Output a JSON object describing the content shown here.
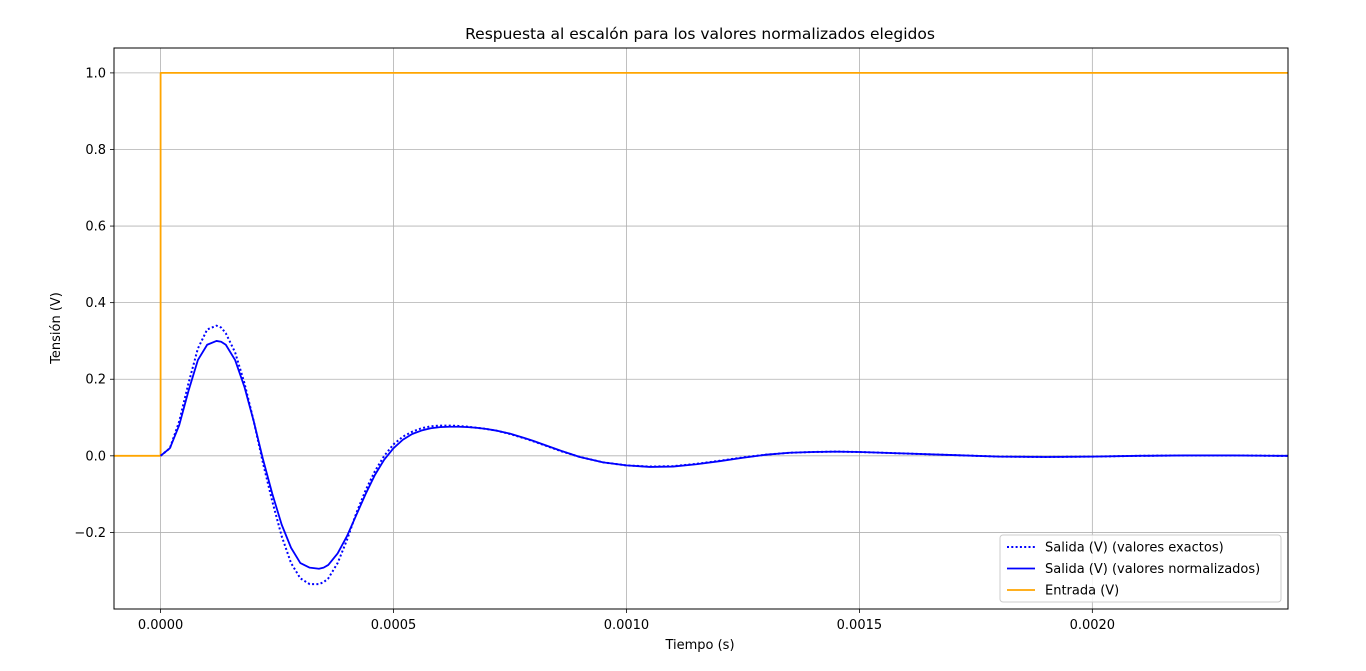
{
  "chart_data": {
    "type": "line",
    "title": "Respuesta al escalón para los valores normalizados elegidos",
    "xlabel": "Tiempo (s)",
    "ylabel": "Tensión (V)",
    "xlim": [
      -0.0001,
      0.00242
    ],
    "ylim": [
      -0.4,
      1.065
    ],
    "x_ticks": [
      0.0,
      0.0005,
      0.001,
      0.0015,
      0.002
    ],
    "x_tick_labels": [
      "0.0000",
      "0.0005",
      "0.0010",
      "0.0015",
      "0.0020"
    ],
    "y_ticks": [
      -0.2,
      0.0,
      0.2,
      0.4,
      0.6,
      0.8,
      1.0
    ],
    "y_tick_labels": [
      "−0.2",
      "0.0",
      "0.2",
      "0.4",
      "0.6",
      "0.8",
      "1.0"
    ],
    "grid": true,
    "legend_position": "lower-right",
    "series": [
      {
        "name": "Salida (V) (valores exactos)",
        "color": "#0000ff",
        "style": "dotted",
        "x": [
          0,
          2e-05,
          4e-05,
          6e-05,
          8e-05,
          0.0001,
          0.00012,
          0.00013,
          0.00014,
          0.00016,
          0.00018,
          0.0002,
          0.00022,
          0.00024,
          0.00026,
          0.00028,
          0.0003,
          0.00032,
          0.00034,
          0.00035,
          0.00036,
          0.00038,
          0.0004,
          0.00042,
          0.00044,
          0.00046,
          0.00048,
          0.0005,
          0.00052,
          0.00054,
          0.00056,
          0.00058,
          0.0006,
          0.00062,
          0.00064,
          0.00066,
          0.00068,
          0.0007,
          0.00072,
          0.00075,
          0.00078,
          0.0008,
          0.00083,
          0.00086,
          0.0009,
          0.00095,
          0.001,
          0.00105,
          0.0011,
          0.00115,
          0.0012,
          0.00125,
          0.0013,
          0.00135,
          0.0014,
          0.00145,
          0.0015,
          0.00155,
          0.0016,
          0.0017,
          0.0018,
          0.0019,
          0.002,
          0.0021,
          0.0022,
          0.0023,
          0.0024,
          0.00242
        ],
        "y": [
          0.0,
          0.02,
          0.09,
          0.19,
          0.28,
          0.33,
          0.34,
          0.335,
          0.32,
          0.27,
          0.19,
          0.09,
          -0.02,
          -0.12,
          -0.21,
          -0.28,
          -0.32,
          -0.335,
          -0.335,
          -0.33,
          -0.32,
          -0.28,
          -0.22,
          -0.15,
          -0.09,
          -0.04,
          0.0,
          0.03,
          0.05,
          0.063,
          0.072,
          0.077,
          0.079,
          0.079,
          0.078,
          0.076,
          0.073,
          0.07,
          0.066,
          0.057,
          0.046,
          0.038,
          0.025,
          0.012,
          -0.003,
          -0.017,
          -0.025,
          -0.028,
          -0.027,
          -0.021,
          -0.013,
          -0.004,
          0.003,
          0.008,
          0.01,
          0.011,
          0.01,
          0.008,
          0.006,
          0.002,
          -0.002,
          -0.003,
          -0.002,
          0.0,
          0.001,
          0.001,
          0.0,
          0.0
        ]
      },
      {
        "name": "Salida (V) (valores normalizados)",
        "color": "#0000ff",
        "style": "solid",
        "x": [
          0,
          2e-05,
          4e-05,
          6e-05,
          8e-05,
          0.0001,
          0.00012,
          0.00013,
          0.00014,
          0.00016,
          0.00018,
          0.0002,
          0.00022,
          0.00024,
          0.00026,
          0.00028,
          0.0003,
          0.00032,
          0.00034,
          0.00035,
          0.00036,
          0.00038,
          0.0004,
          0.00042,
          0.00044,
          0.00046,
          0.00048,
          0.0005,
          0.00052,
          0.00054,
          0.00056,
          0.00058,
          0.0006,
          0.00062,
          0.00064,
          0.00066,
          0.00068,
          0.0007,
          0.00072,
          0.00075,
          0.00078,
          0.0008,
          0.00083,
          0.00086,
          0.0009,
          0.00095,
          0.001,
          0.00105,
          0.0011,
          0.00115,
          0.0012,
          0.00125,
          0.0013,
          0.00135,
          0.0014,
          0.00145,
          0.0015,
          0.00155,
          0.0016,
          0.0017,
          0.0018,
          0.0019,
          0.002,
          0.0021,
          0.0022,
          0.0023,
          0.0024,
          0.00242
        ],
        "y": [
          0.0,
          0.02,
          0.08,
          0.17,
          0.25,
          0.29,
          0.3,
          0.298,
          0.29,
          0.25,
          0.18,
          0.09,
          -0.01,
          -0.1,
          -0.18,
          -0.24,
          -0.28,
          -0.292,
          -0.295,
          -0.292,
          -0.285,
          -0.255,
          -0.21,
          -0.155,
          -0.1,
          -0.05,
          -0.01,
          0.02,
          0.042,
          0.057,
          0.066,
          0.072,
          0.075,
          0.076,
          0.076,
          0.075,
          0.073,
          0.07,
          0.066,
          0.058,
          0.047,
          0.039,
          0.026,
          0.013,
          -0.003,
          -0.017,
          -0.025,
          -0.029,
          -0.028,
          -0.022,
          -0.014,
          -0.005,
          0.003,
          0.008,
          0.01,
          0.011,
          0.01,
          0.008,
          0.006,
          0.002,
          -0.002,
          -0.003,
          -0.002,
          0.0,
          0.001,
          0.001,
          0.0,
          0.0
        ]
      },
      {
        "name": "Entrada (V)",
        "color": "#ffa500",
        "style": "solid",
        "x": [
          -0.0001,
          0.0,
          0.0,
          0.00242
        ],
        "y": [
          0.0,
          0.0,
          1.0,
          1.0
        ]
      }
    ]
  }
}
